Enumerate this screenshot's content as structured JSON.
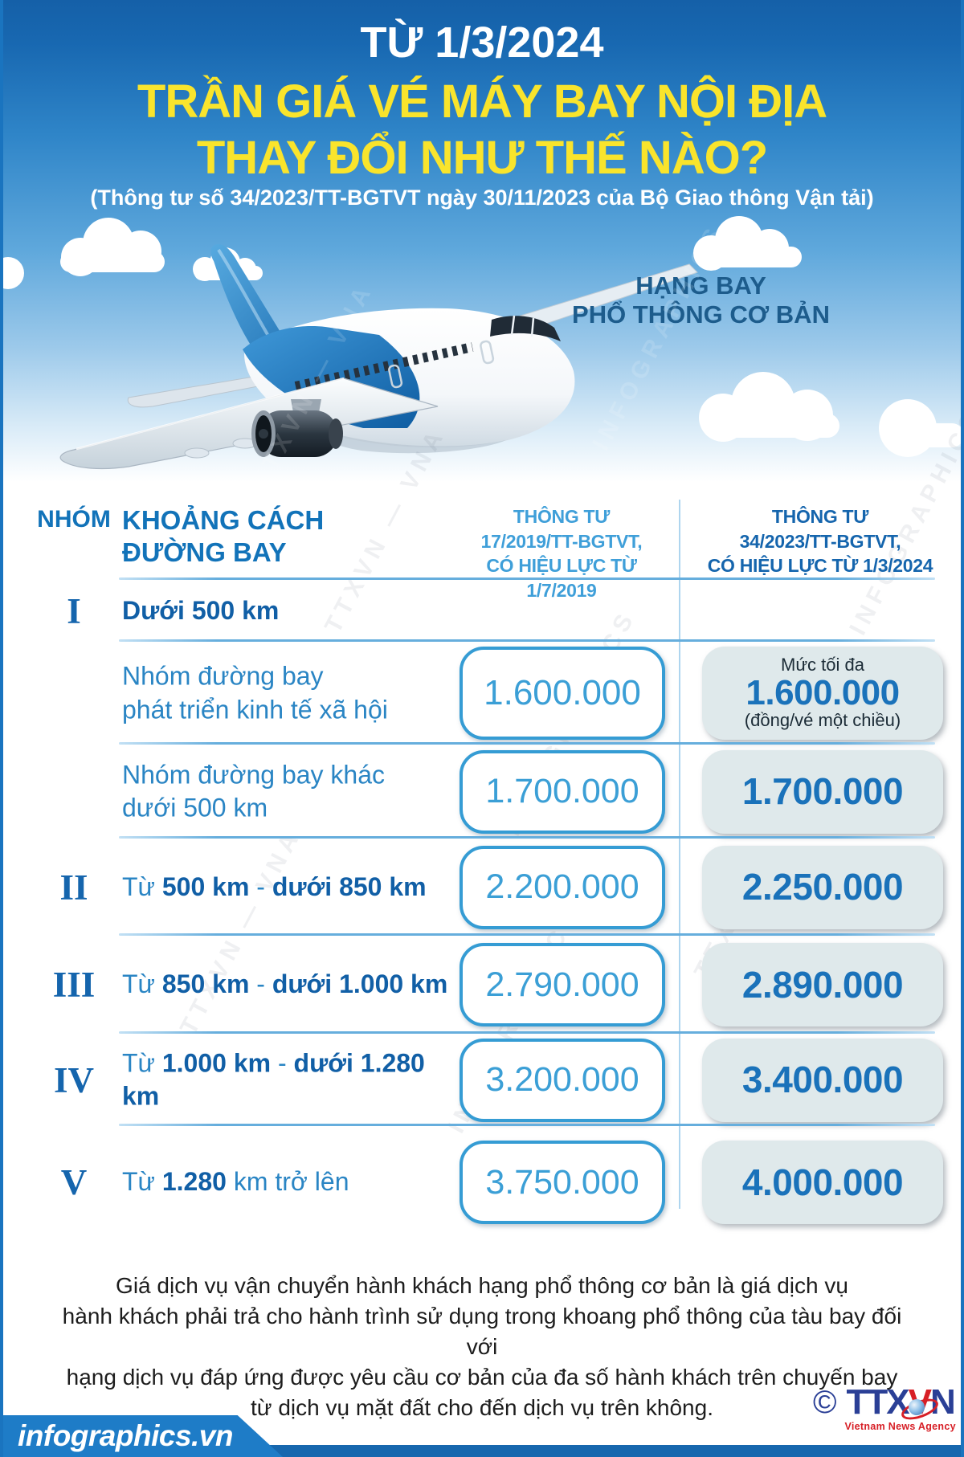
{
  "colors": {
    "header_blue_top": "#1560a8",
    "title_yellow": "#f9e42c",
    "accent_blue": "#1a74bf",
    "table_head_blue": "#1273b9",
    "old_column_blue": "#3f9fd9",
    "new_column_blue": "#1565ad",
    "old_box_border": "#359cd4",
    "new_box_bg": "#dfe9eb",
    "new_value_blue": "#1a72ba",
    "divider_blue": "#66aedd",
    "logo_blue": "#2a3f96",
    "logo_red": "#d71f26"
  },
  "header": {
    "date_line": "TỪ 1/3/2024",
    "title_line1": "TRẦN GIÁ VÉ MÁY BAY NỘI ĐỊA",
    "title_line2": "THAY ĐỔI NHƯ THẾ NÀO?",
    "subtitle": "(Thông tư số 34/2023/TT-BGTVT ngày 30/11/2023 của Bộ Giao thông Vận tải)",
    "fare_class_line1": "HẠNG BAY",
    "fare_class_line2": "PHỔ THÔNG CƠ BẢN"
  },
  "table": {
    "col_group": "NHÓM",
    "col_distance_lines": [
      "KHOẢNG CÁCH",
      "ĐƯỜNG BAY"
    ],
    "col_old_lines": [
      "THÔNG TƯ",
      "17/2019/TT-BGTVT,",
      "CÓ HIỆU LỰC TỪ 1/7/2019"
    ],
    "col_new_lines": [
      "THÔNG TƯ",
      "34/2023/TT-BGTVT,",
      "CÓ HIỆU LỰC TỪ 1/3/2024"
    ],
    "unit_note_top": "Mức tối đa",
    "unit_note_bottom": "(đồng/vé một chiều)",
    "rows": [
      {
        "numeral": "I",
        "label_lines": [
          [
            {
              "t": "Dưới 500 km",
              "b": true
            }
          ]
        ],
        "old_price": null,
        "new_price": null,
        "divider_after": true
      },
      {
        "numeral": "",
        "label_lines": [
          [
            {
              "t": "Nhóm đường bay"
            }
          ],
          [
            {
              "t": "phát triển kinh tế xã hội"
            }
          ]
        ],
        "old_price": "1.600.000",
        "new_price": "1.600.000",
        "show_unit_notes": true,
        "divider_after": true
      },
      {
        "numeral": "",
        "label_lines": [
          [
            {
              "t": "Nhóm đường bay khác"
            }
          ],
          [
            {
              "t": "dưới 500 km"
            }
          ]
        ],
        "old_price": "1.700.000",
        "new_price": "1.700.000",
        "divider_after": true
      },
      {
        "numeral": "II",
        "label_lines": [
          [
            {
              "t": "Từ "
            },
            {
              "t": "500 km",
              "b": true
            },
            {
              "t": " - "
            },
            {
              "t": "dưới 850 km",
              "b": true
            }
          ]
        ],
        "old_price": "2.200.000",
        "new_price": "2.250.000",
        "divider_after": true
      },
      {
        "numeral": "III",
        "label_lines": [
          [
            {
              "t": "Từ "
            },
            {
              "t": "850 km",
              "b": true
            },
            {
              "t": " - "
            },
            {
              "t": "dưới 1.000 km",
              "b": true
            }
          ]
        ],
        "old_price": "2.790.000",
        "new_price": "2.890.000",
        "divider_after": true
      },
      {
        "numeral": "IV",
        "label_lines": [
          [
            {
              "t": "Từ "
            },
            {
              "t": "1.000 km",
              "b": true
            },
            {
              "t": " - "
            },
            {
              "t": "dưới 1.280 km",
              "b": true
            }
          ]
        ],
        "old_price": "3.200.000",
        "new_price": "3.400.000",
        "divider_after": true
      },
      {
        "numeral": "V",
        "label_lines": [
          [
            {
              "t": "Từ "
            },
            {
              "t": "1.280",
              "b": true
            },
            {
              "t": " km trở lên"
            }
          ]
        ],
        "old_price": "3.750.000",
        "new_price": "4.000.000",
        "divider_after": false
      }
    ]
  },
  "watermark": {
    "texts": [
      "TTXVN — VNA",
      "INFOGRAPHICS"
    ]
  },
  "footer": {
    "note_lines": [
      "Giá dịch vụ vận chuyển hành khách hạng phổ thông cơ bản là giá dịch vụ",
      "hành khách phải trả cho hành trình sử dụng trong khoang phổ thông của tàu bay đối với",
      "hạng dịch vụ đáp ứng được yêu cầu cơ bản của đa số hành khách trên chuyến bay",
      "từ dịch vụ mặt đất cho đến dịch vụ trên không."
    ]
  },
  "branding": {
    "site": "infographics.vn",
    "copyright": "©",
    "agency_parts": {
      "a": "TTX",
      "b": "V",
      "c": "N"
    },
    "agency_tagline": "Vietnam News Agency"
  }
}
